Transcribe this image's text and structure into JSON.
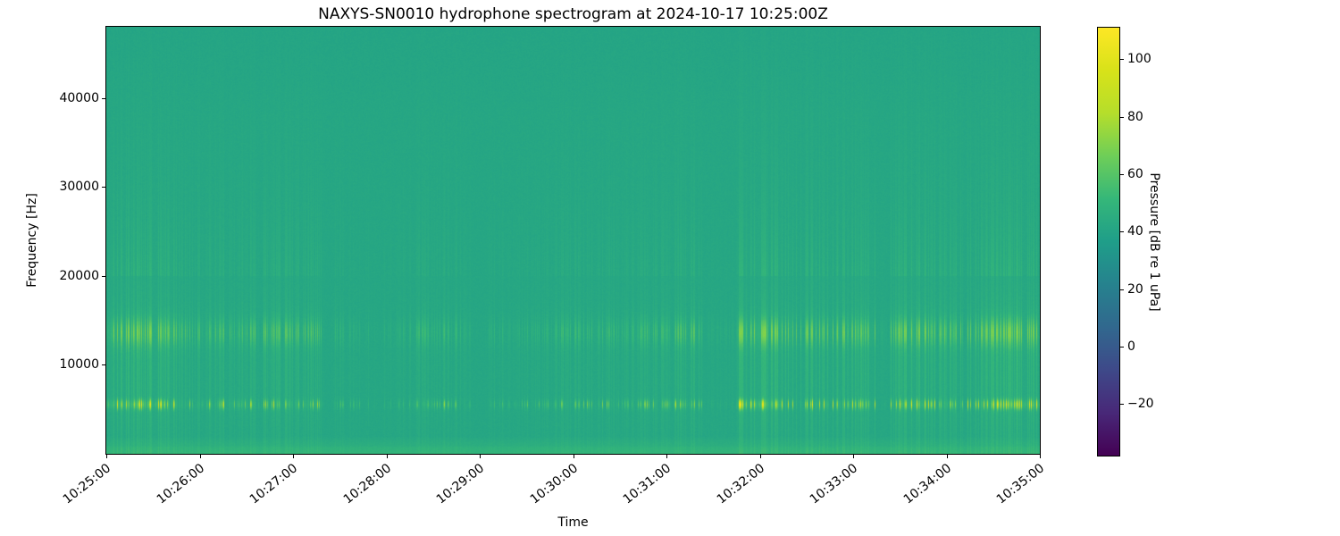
{
  "figure": {
    "title": "NAXYS-SN0010 hydrophone spectrogram at 2024-10-17 10:25:00Z",
    "background_color": "#ffffff"
  },
  "axes": {
    "xlabel": "Time",
    "ylabel": "Frequency [Hz]",
    "x_tick_labels": [
      "10:25:00",
      "10:26:00",
      "10:27:00",
      "10:28:00",
      "10:29:00",
      "10:30:00",
      "10:31:00",
      "10:32:00",
      "10:33:00",
      "10:34:00",
      "10:35:00"
    ],
    "y_ticks": [
      {
        "value": 10000,
        "label": "10000"
      },
      {
        "value": 20000,
        "label": "20000"
      },
      {
        "value": 30000,
        "label": "30000"
      },
      {
        "value": 40000,
        "label": "40000"
      }
    ]
  },
  "colorbar": {
    "label": "Pressure [dB re 1 uPa]",
    "ticks": [
      {
        "value": 100,
        "label": "100"
      },
      {
        "value": 80,
        "label": "80"
      },
      {
        "value": 60,
        "label": "60"
      },
      {
        "value": 40,
        "label": "40"
      },
      {
        "value": 20,
        "label": "20"
      },
      {
        "value": 0,
        "label": "0"
      },
      {
        "value": -20,
        "label": "−20"
      }
    ]
  },
  "chart_data": {
    "type": "heatmap",
    "subtype": "spectrogram",
    "title": "NAXYS-SN0010 hydrophone spectrogram at 2024-10-17 10:25:00Z",
    "xlabel": "Time",
    "ylabel": "Frequency [Hz]",
    "x_tick_labels": [
      "10:25:00",
      "10:26:00",
      "10:27:00",
      "10:28:00",
      "10:29:00",
      "10:30:00",
      "10:31:00",
      "10:32:00",
      "10:33:00",
      "10:34:00",
      "10:35:00"
    ],
    "x_span_seconds": 600,
    "y_range_hz": [
      0,
      48000
    ],
    "y_ticks_hz": [
      10000,
      20000,
      30000,
      40000
    ],
    "colormap": "viridis",
    "colormap_stops": [
      [
        0.0,
        "#440154"
      ],
      [
        0.1,
        "#482878"
      ],
      [
        0.2,
        "#3e4989"
      ],
      [
        0.3,
        "#31688e"
      ],
      [
        0.4,
        "#26828e"
      ],
      [
        0.5,
        "#1f9e89"
      ],
      [
        0.6,
        "#35b779"
      ],
      [
        0.7,
        "#6ece58"
      ],
      [
        0.8,
        "#b5de2b"
      ],
      [
        0.9,
        "#d8e219"
      ],
      [
        1.0,
        "#fde725"
      ]
    ],
    "colorbar_label": "Pressure [dB re 1 uPa]",
    "colorbar_ticks_db": [
      100,
      80,
      60,
      40,
      20,
      0,
      -20
    ],
    "value_range_db": [
      -38,
      111
    ],
    "background_level_db": 41.5,
    "features": [
      {
        "name": "tonal-blob-band",
        "center_hz": 5600,
        "bandwidth_hz": 1000,
        "peak_level_db": 88,
        "pattern": "bright intermittent yellow-green blobs, pulses every few seconds"
      },
      {
        "name": "striped-mid-band",
        "range_hz": [
          11800,
          15800
        ],
        "peak_level_db": 64,
        "pattern": "dense brighter vertical striping"
      },
      {
        "name": "low-frequency-strip",
        "range_hz": [
          0,
          2000
        ],
        "level_db": 49,
        "pattern": "continuous lighter green band along bottom"
      },
      {
        "name": "broadband-impulses",
        "range_hz": [
          0,
          46000
        ],
        "level_above_background_db": 8,
        "pattern": "faint full-height vertical stripes"
      },
      {
        "name": "quiet-gaps",
        "times": [
          "10:27:20-10:27:26",
          "10:28:55-10:29:05",
          "10:31:23-10:31:46",
          "10:33:14-10:33:23"
        ]
      }
    ],
    "render": {
      "seed": 20241017,
      "noise_db": 2.4,
      "low_boost": {
        "cutoff_hz": 2000,
        "gain_db": 7.0,
        "extra_below_hz": 900,
        "extra_db": 1.5
      },
      "high_rolloff": {
        "start_hz": 38000,
        "db_per_10khz": 1.0
      },
      "bands": [
        {
          "center_hz": 5600,
          "sigma_hz": 520,
          "gain_db": 46,
          "source": "B"
        },
        {
          "center_hz": 13700,
          "sigma_hz": 1500,
          "gain_db": 21,
          "source": "A"
        },
        {
          "center_hz": 9500,
          "sigma_hz": 11000,
          "gain_db": 9,
          "source": "A"
        }
      ],
      "high_tail": {
        "start_hz": 20000,
        "gain_db": 5,
        "decay_hz": 15000
      },
      "stripe_duty": 0.45,
      "quiet_gaps": [
        [
          0.233,
          0.244
        ],
        [
          0.391,
          0.409
        ],
        [
          0.639,
          0.677
        ],
        [
          0.824,
          0.84
        ]
      ],
      "hot_clusters": [
        [
          0.0,
          0.06
        ],
        [
          0.675,
          0.725
        ],
        [
          0.85,
          0.878
        ],
        [
          0.95,
          1.0
        ]
      ]
    }
  }
}
